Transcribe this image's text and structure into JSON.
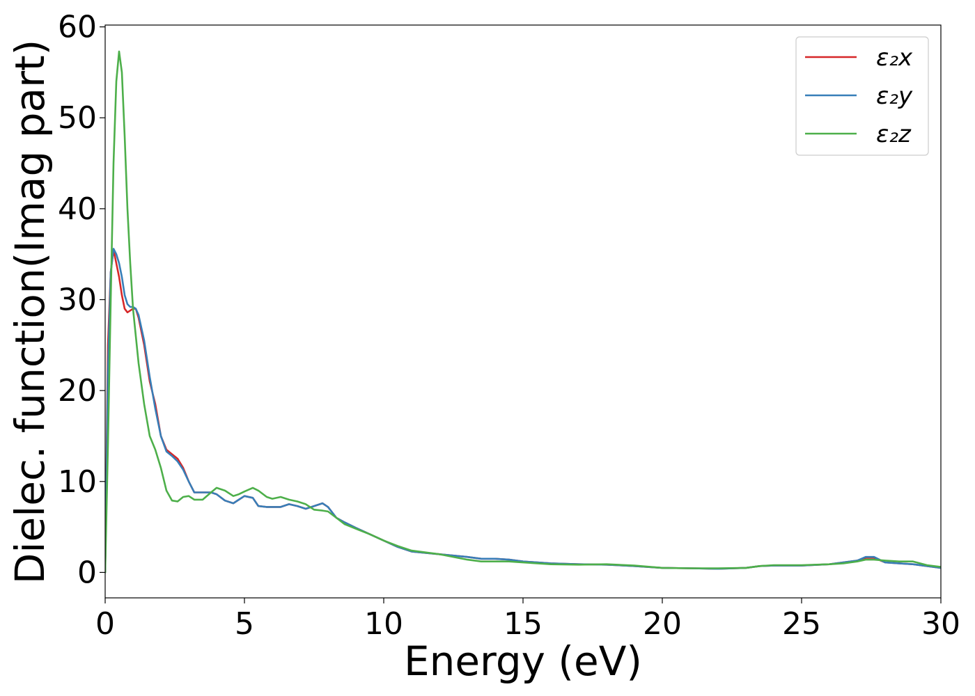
{
  "chart_data": {
    "type": "line",
    "title": "",
    "xlabel": "Energy (eV)",
    "ylabel": "Dielec. function(Imag part)",
    "xlim": [
      0,
      30
    ],
    "ylim": [
      -2.8,
      60.2
    ],
    "xticks": [
      0,
      5,
      10,
      15,
      20,
      25,
      30
    ],
    "yticks": [
      0,
      10,
      20,
      30,
      40,
      50,
      60
    ],
    "grid": false,
    "legend_position": "top-right",
    "series": [
      {
        "name": "ε₂x",
        "color": "#d62728",
        "x": [
          0,
          0.1,
          0.2,
          0.3,
          0.4,
          0.5,
          0.6,
          0.7,
          0.8,
          0.9,
          1.0,
          1.1,
          1.2,
          1.4,
          1.6,
          1.8,
          2.0,
          2.2,
          2.4,
          2.6,
          2.8,
          3.0,
          3.2,
          3.5,
          3.8,
          4.0,
          4.3,
          4.6,
          4.8,
          5.0,
          5.3,
          5.5,
          5.8,
          6.0,
          6.3,
          6.6,
          6.9,
          7.2,
          7.5,
          7.8,
          8.0,
          8.3,
          8.6,
          9.0,
          9.5,
          10.0,
          10.5,
          11.0,
          12.0,
          13.0,
          13.5,
          14.0,
          14.5,
          15.0,
          16.0,
          17.0,
          18.0,
          19.0,
          20.0,
          21.0,
          22.0,
          23.0,
          23.5,
          24.0,
          25.0,
          26.0,
          26.5,
          27.0,
          27.3,
          27.6,
          28.0,
          28.5,
          29.0,
          29.5,
          30.0
        ],
        "values": [
          0,
          25,
          33,
          35.5,
          34,
          32.5,
          30.5,
          29.0,
          28.6,
          28.8,
          29.0,
          29.0,
          28.0,
          25.0,
          21.0,
          18.5,
          15.0,
          13.5,
          13.0,
          12.5,
          11.5,
          10.0,
          8.8,
          8.8,
          8.8,
          8.6,
          7.9,
          7.6,
          8.0,
          8.4,
          8.2,
          7.3,
          7.2,
          7.2,
          7.2,
          7.5,
          7.3,
          7.0,
          7.3,
          7.6,
          7.2,
          6.0,
          5.5,
          4.9,
          4.2,
          3.5,
          2.8,
          2.3,
          2.0,
          1.7,
          1.5,
          1.5,
          1.4,
          1.2,
          1.0,
          0.9,
          0.85,
          0.7,
          0.5,
          0.45,
          0.4,
          0.5,
          0.7,
          0.75,
          0.75,
          0.9,
          1.1,
          1.3,
          1.6,
          1.6,
          1.1,
          1.0,
          0.9,
          0.7,
          0.5
        ]
      },
      {
        "name": "ε₂y",
        "color": "#377eb8",
        "x": [
          0,
          0.1,
          0.2,
          0.3,
          0.4,
          0.5,
          0.6,
          0.7,
          0.8,
          0.9,
          1.0,
          1.1,
          1.2,
          1.4,
          1.6,
          1.8,
          2.0,
          2.2,
          2.4,
          2.6,
          2.8,
          3.0,
          3.2,
          3.5,
          3.8,
          4.0,
          4.3,
          4.6,
          4.8,
          5.0,
          5.3,
          5.5,
          5.8,
          6.0,
          6.3,
          6.6,
          6.9,
          7.2,
          7.5,
          7.8,
          8.0,
          8.3,
          8.6,
          9.0,
          9.5,
          10.0,
          10.5,
          11.0,
          12.0,
          13.0,
          13.5,
          14.0,
          14.5,
          15.0,
          16.0,
          17.0,
          18.0,
          19.0,
          20.0,
          21.0,
          22.0,
          23.0,
          23.5,
          24.0,
          25.0,
          26.0,
          26.5,
          27.0,
          27.3,
          27.6,
          28.0,
          28.5,
          29.0,
          29.5,
          30.0
        ],
        "values": [
          0,
          22,
          33,
          35.6,
          35.0,
          34.0,
          32.5,
          30.5,
          29.5,
          29.2,
          29.2,
          29.0,
          28.3,
          25.5,
          21.5,
          18.0,
          15.0,
          13.3,
          12.8,
          12.2,
          11.3,
          10.0,
          8.8,
          8.8,
          8.8,
          8.6,
          7.9,
          7.6,
          8.0,
          8.4,
          8.2,
          7.3,
          7.2,
          7.2,
          7.2,
          7.5,
          7.3,
          7.0,
          7.3,
          7.6,
          7.2,
          6.0,
          5.5,
          4.9,
          4.2,
          3.5,
          2.8,
          2.3,
          2.0,
          1.7,
          1.5,
          1.5,
          1.4,
          1.2,
          1.0,
          0.9,
          0.85,
          0.7,
          0.5,
          0.45,
          0.4,
          0.5,
          0.7,
          0.75,
          0.75,
          0.9,
          1.1,
          1.3,
          1.7,
          1.7,
          1.1,
          1.0,
          0.9,
          0.7,
          0.5
        ]
      },
      {
        "name": "ε₂z",
        "color": "#4daf4a",
        "x": [
          0,
          0.1,
          0.2,
          0.3,
          0.4,
          0.5,
          0.6,
          0.7,
          0.8,
          0.9,
          1.0,
          1.2,
          1.4,
          1.6,
          1.8,
          2.0,
          2.2,
          2.4,
          2.6,
          2.8,
          3.0,
          3.2,
          3.5,
          3.8,
          4.0,
          4.3,
          4.6,
          4.8,
          5.0,
          5.3,
          5.5,
          5.8,
          6.0,
          6.3,
          6.6,
          6.9,
          7.2,
          7.5,
          7.8,
          8.0,
          8.3,
          8.6,
          9.0,
          9.5,
          10.0,
          10.5,
          11.0,
          12.0,
          13.0,
          13.5,
          14.0,
          14.5,
          15.0,
          16.0,
          17.0,
          18.0,
          19.0,
          20.0,
          21.0,
          22.0,
          23.0,
          23.5,
          24.0,
          25.0,
          26.0,
          26.5,
          27.0,
          27.3,
          27.6,
          28.0,
          28.5,
          29.0,
          29.5,
          30.0
        ],
        "values": [
          0,
          14,
          30,
          45,
          54,
          57.3,
          55,
          48,
          40,
          34,
          29,
          23,
          18.5,
          15.0,
          13.5,
          11.5,
          9.0,
          7.9,
          7.8,
          8.3,
          8.4,
          8.0,
          8.0,
          8.8,
          9.3,
          9.0,
          8.4,
          8.6,
          8.9,
          9.3,
          9.0,
          8.3,
          8.1,
          8.3,
          8.0,
          7.8,
          7.5,
          6.9,
          6.8,
          6.7,
          6.0,
          5.3,
          4.8,
          4.2,
          3.5,
          2.9,
          2.4,
          2.0,
          1.4,
          1.2,
          1.2,
          1.2,
          1.1,
          0.9,
          0.85,
          0.9,
          0.75,
          0.5,
          0.45,
          0.45,
          0.5,
          0.7,
          0.8,
          0.8,
          0.9,
          1.0,
          1.2,
          1.4,
          1.4,
          1.3,
          1.2,
          1.2,
          0.8,
          0.6
        ]
      }
    ]
  }
}
